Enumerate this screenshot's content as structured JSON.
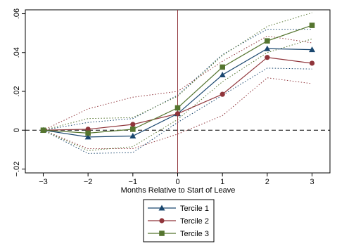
{
  "chart_data": {
    "type": "line",
    "xlabel": "Months Relative to Start of Leave",
    "ylabel": "",
    "xlim": [
      -3.4,
      3.4
    ],
    "ylim": [
      -0.022,
      0.062
    ],
    "x_ticks": [
      -3,
      -2,
      -1,
      0,
      1,
      2,
      3
    ],
    "x_tick_labels": [
      "−3",
      "−2",
      "−1",
      "0",
      "1",
      "2",
      "3"
    ],
    "y_ticks": [
      -0.02,
      0,
      0.02,
      0.04,
      0.06
    ],
    "y_tick_labels": [
      "−.02",
      "0",
      ".02",
      ".04",
      ".06"
    ],
    "reference_lines": {
      "horizontal_y": 0,
      "vertical_x": 0
    },
    "grid": false,
    "legend_position": "bottom",
    "x": [
      -3,
      -2,
      -1,
      0,
      1,
      2,
      3
    ],
    "series": [
      {
        "name": "Tercile 1",
        "color": "#1a476f",
        "marker": "triangle",
        "values": [
          0.0,
          -0.0035,
          -0.003,
          0.0085,
          0.0285,
          0.042,
          0.0415
        ],
        "ci_low": [
          0.0,
          -0.012,
          -0.0115,
          0.004,
          0.018,
          0.032,
          0.0315
        ],
        "ci_high": [
          0.0,
          0.004,
          0.006,
          0.018,
          0.039,
          0.052,
          0.052
        ]
      },
      {
        "name": "Tercile 2",
        "color": "#90353b",
        "marker": "circle",
        "values": [
          0.0,
          0.0005,
          0.003,
          0.0085,
          0.0185,
          0.0375,
          0.0345
        ],
        "ci_low": [
          0.0,
          -0.0095,
          -0.0095,
          -0.002,
          0.0075,
          0.027,
          0.024
        ],
        "ci_high": [
          0.0,
          0.011,
          0.017,
          0.02,
          0.0355,
          0.0485,
          0.045
        ]
      },
      {
        "name": "Tercile 3",
        "color": "#55752f",
        "marker": "square",
        "values": [
          0.0,
          -0.0015,
          0.0005,
          0.0115,
          0.0325,
          0.046,
          0.054
        ],
        "ci_low": [
          0.0,
          -0.0105,
          -0.0085,
          0.0055,
          0.025,
          0.04,
          0.047
        ],
        "ci_high": [
          0.0,
          0.006,
          0.0065,
          0.0175,
          0.0385,
          0.0535,
          0.0605
        ]
      }
    ]
  }
}
